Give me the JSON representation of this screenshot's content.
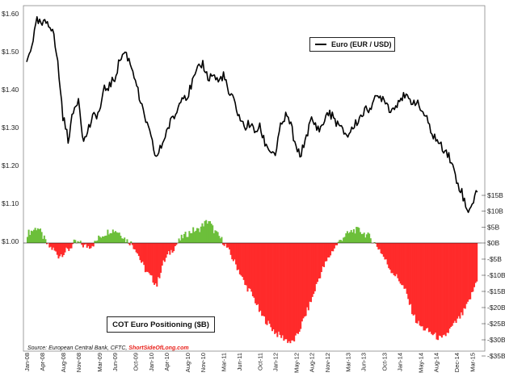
{
  "chart_data": {
    "type": "line+bar",
    "left_axis": {
      "label": "EUR/USD",
      "ylim": [
        1.0,
        1.6
      ],
      "ticks": [
        "$1.00",
        "$1.10",
        "$1.20",
        "$1.30",
        "$1.40",
        "$1.50",
        "$1.60"
      ],
      "tick_values": [
        1.0,
        1.1,
        1.2,
        1.3,
        1.4,
        1.5,
        1.6
      ]
    },
    "right_axis": {
      "label": "COT Euro Positioning ($B)",
      "ylim": [
        -35,
        15
      ],
      "ticks": [
        "$15B",
        "$10B",
        "$5B",
        "$0B",
        "-$5B",
        "-$10B",
        "-$15B",
        "-$20B",
        "-$25B",
        "-$30B",
        "-$35B"
      ],
      "tick_values": [
        15,
        10,
        5,
        0,
        -5,
        -10,
        -15,
        -20,
        -25,
        -30,
        -35
      ]
    },
    "x_ticks": [
      "Jan-08",
      "Apr-08",
      "Aug-08",
      "Nov-08",
      "Mar-09",
      "Jun-09",
      "Oct-09",
      "Jan-10",
      "Apr-10",
      "Aug-10",
      "Nov-10",
      "Mar-11",
      "Jun-11",
      "Oct-11",
      "Jan-12",
      "May-12",
      "Aug-12",
      "Nov-12",
      "Mar-13",
      "Jun-13",
      "Oct-13",
      "Jan-14",
      "May-14",
      "Aug-14",
      "Dec-14",
      "Mar-15"
    ],
    "x_tick_months": [
      0,
      3,
      7,
      10,
      14,
      17,
      21,
      24,
      27,
      31,
      34,
      38,
      41,
      45,
      48,
      52,
      55,
      58,
      62,
      65,
      69,
      72,
      76,
      79,
      83,
      86
    ],
    "series": [
      {
        "name": "Euro (EUR / USD)",
        "type": "line",
        "axis": "left",
        "color": "#000000",
        "months": [
          0,
          1,
          2,
          3,
          4,
          5,
          6,
          7,
          8,
          9,
          10,
          11,
          12,
          13,
          14,
          15,
          16,
          17,
          18,
          19,
          20,
          21,
          22,
          23,
          24,
          25,
          26,
          27,
          28,
          29,
          30,
          31,
          32,
          33,
          34,
          35,
          36,
          37,
          38,
          39,
          40,
          41,
          42,
          43,
          44,
          45,
          46,
          47,
          48,
          49,
          50,
          51,
          52,
          53,
          54,
          55,
          56,
          57,
          58,
          59,
          60,
          61,
          62,
          63,
          64,
          65,
          66,
          67,
          68,
          69,
          70,
          71,
          72,
          73,
          74,
          75,
          76,
          77,
          78,
          79,
          80,
          81,
          82,
          83,
          84,
          85,
          86,
          87
        ],
        "values": [
          1.47,
          1.52,
          1.58,
          1.57,
          1.58,
          1.56,
          1.47,
          1.33,
          1.27,
          1.34,
          1.38,
          1.26,
          1.3,
          1.33,
          1.34,
          1.4,
          1.41,
          1.43,
          1.48,
          1.5,
          1.47,
          1.43,
          1.36,
          1.32,
          1.27,
          1.22,
          1.25,
          1.29,
          1.32,
          1.34,
          1.39,
          1.38,
          1.42,
          1.45,
          1.47,
          1.43,
          1.44,
          1.42,
          1.44,
          1.39,
          1.37,
          1.33,
          1.3,
          1.31,
          1.29,
          1.3,
          1.26,
          1.24,
          1.23,
          1.3,
          1.33,
          1.31,
          1.24,
          1.23,
          1.28,
          1.32,
          1.3,
          1.3,
          1.34,
          1.33,
          1.31,
          1.29,
          1.28,
          1.3,
          1.32,
          1.34,
          1.35,
          1.37,
          1.38,
          1.38,
          1.35,
          1.35,
          1.38,
          1.38,
          1.37,
          1.37,
          1.35,
          1.33,
          1.29,
          1.27,
          1.25,
          1.24,
          1.21,
          1.16,
          1.13,
          1.08,
          1.1,
          1.13
        ]
      },
      {
        "name": "COT Euro Positioning ($B)",
        "type": "bar",
        "axis": "right",
        "positive_color": "#6cbf3a",
        "negative_color": "#ff2b2b",
        "months": [
          0,
          1,
          2,
          3,
          4,
          5,
          6,
          7,
          8,
          9,
          10,
          11,
          12,
          13,
          14,
          15,
          16,
          17,
          18,
          19,
          20,
          21,
          22,
          23,
          24,
          25,
          26,
          27,
          28,
          29,
          30,
          31,
          32,
          33,
          34,
          35,
          36,
          37,
          38,
          39,
          40,
          41,
          42,
          43,
          44,
          45,
          46,
          47,
          48,
          49,
          50,
          51,
          52,
          53,
          54,
          55,
          56,
          57,
          58,
          59,
          60,
          61,
          62,
          63,
          64,
          65,
          66,
          67,
          68,
          69,
          70,
          71,
          72,
          73,
          74,
          75,
          76,
          77,
          78,
          79,
          80,
          81,
          82,
          83,
          84,
          85,
          86,
          87
        ],
        "values": [
          3,
          4,
          5,
          2,
          -1,
          -2,
          -4,
          -3,
          -2,
          0,
          0,
          -1,
          -1,
          0,
          2,
          3,
          4,
          4,
          3,
          1,
          0,
          -2,
          -6,
          -9,
          -11,
          -13,
          -7,
          -4,
          -2,
          0,
          2,
          3,
          4,
          4,
          6,
          7,
          4,
          2,
          0,
          -3,
          -6,
          -9,
          -13,
          -15,
          -18,
          -22,
          -24,
          -26,
          -28,
          -29,
          -30,
          -31,
          -29,
          -25,
          -21,
          -17,
          -12,
          -8,
          -5,
          -2,
          0,
          2,
          3,
          4,
          4,
          3,
          2,
          0,
          -2,
          -5,
          -8,
          -10,
          -12,
          -15,
          -20,
          -24,
          -26,
          -27,
          -28,
          -29,
          -30,
          -28,
          -26,
          -24,
          -22,
          -19,
          -15,
          -10
        ],
        "range": [
          -34,
          15
        ]
      }
    ],
    "legend": "Euro (EUR / USD)",
    "annotation": "COT Euro Positioning ($B)",
    "source_prefix": "Source: European Central Bank, CFTC,",
    "source_brand": "ShortSideOfLong.com"
  }
}
